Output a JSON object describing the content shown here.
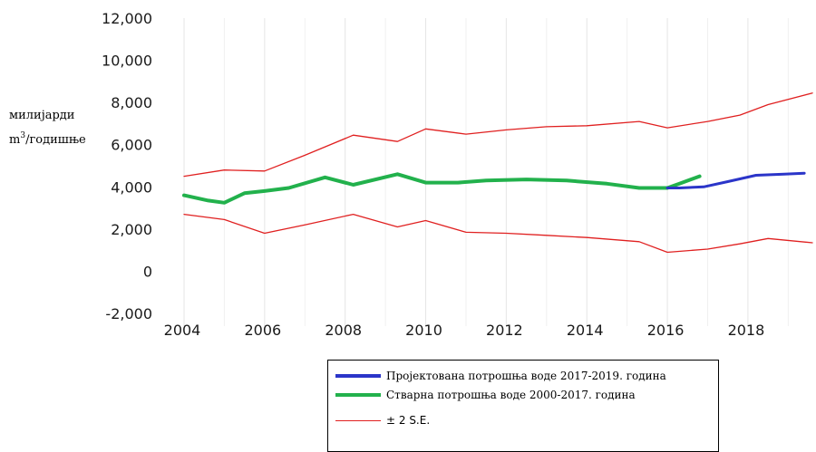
{
  "chart_data": {
    "type": "line",
    "ylabel_line1": "милијарди",
    "ylabel_line2": "m",
    "ylabel_sup": "3",
    "ylabel_line2_rest": "/годишње",
    "ylim": [
      -2000,
      12000
    ],
    "yticks": [
      12000,
      10000,
      8000,
      6000,
      4000,
      2000,
      0,
      -2000
    ],
    "ytick_labels": [
      "12,000",
      "10,000",
      "8,000",
      "6,000",
      "4,000",
      "2,000",
      "0",
      "-2,000"
    ],
    "xlim": [
      2004,
      2019.6
    ],
    "xticks": [
      2004,
      2006,
      2008,
      2010,
      2012,
      2014,
      2016,
      2018
    ],
    "xtick_labels": [
      "2004",
      "2006",
      "2008",
      "2010",
      "2012",
      "2014",
      "2016",
      "2018"
    ],
    "grid": "vertical",
    "legend_position": "bottom",
    "series": [
      {
        "name": "Пројектована потрошња воде 2017-2019. година",
        "color": "#2b35c9",
        "width": 3,
        "x": [
          2016.0,
          2016.3,
          2016.9,
          2017.5,
          2018.2,
          2018.9,
          2019.4
        ],
        "y": [
          3950,
          3950,
          4000,
          4250,
          4550,
          4600,
          4650
        ]
      },
      {
        "name": "Стварна потрошња воде 2000-2017. година",
        "color": "#22b14c",
        "width": 4,
        "x": [
          2004.0,
          2004.6,
          2005.0,
          2005.5,
          2006.0,
          2006.6,
          2007.5,
          2008.2,
          2009.3,
          2010.0,
          2010.8,
          2011.5,
          2012.5,
          2013.5,
          2014.5,
          2015.3,
          2016.0,
          2016.3,
          2016.8
        ],
        "y": [
          3600,
          3350,
          3250,
          3700,
          3800,
          3950,
          4450,
          4100,
          4600,
          4200,
          4200,
          4300,
          4350,
          4300,
          4150,
          3950,
          3950,
          4150,
          4500
        ]
      },
      {
        "name": "± 2 S.E.",
        "color": "#e02020",
        "width": 1.3,
        "x": [
          2004.0,
          2005.0,
          2006.0,
          2007.0,
          2008.2,
          2009.3,
          2010.0,
          2011.0,
          2012.0,
          2013.0,
          2014.0,
          2015.3,
          2016.0,
          2017.0,
          2017.8,
          2018.5,
          2019.6
        ],
        "y": [
          4500,
          4800,
          4750,
          5500,
          6450,
          6150,
          6750,
          6500,
          6700,
          6850,
          6900,
          7100,
          6800,
          7100,
          7400,
          7900,
          8450
        ]
      },
      {
        "name": "",
        "color": "#e02020",
        "width": 1.3,
        "x": [
          2004.0,
          2005.0,
          2006.0,
          2007.0,
          2008.2,
          2009.3,
          2010.0,
          2011.0,
          2012.0,
          2013.0,
          2014.0,
          2015.3,
          2016.0,
          2017.0,
          2017.8,
          2018.5,
          2019.6
        ],
        "y": [
          2700,
          2450,
          1800,
          2200,
          2700,
          2100,
          2400,
          1850,
          1800,
          1700,
          1600,
          1400,
          900,
          1050,
          1300,
          1550,
          1350
        ]
      }
    ],
    "legend": [
      {
        "label": "Пројектована потрошња воде 2017-2019. година",
        "color": "#2b35c9",
        "width": 4,
        "font": "serif"
      },
      {
        "label": "Стварна потрошња воде 2000-2017. година",
        "color": "#22b14c",
        "width": 4,
        "font": "serif"
      },
      {
        "label": "± 2 S.E.",
        "color": "#e02020",
        "width": 1,
        "font": "sans"
      }
    ]
  }
}
